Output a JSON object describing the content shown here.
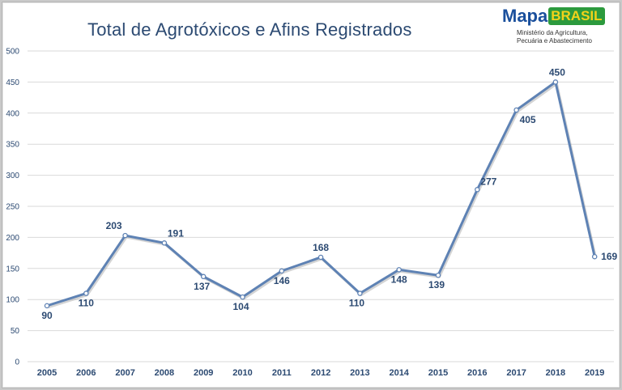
{
  "header": {
    "title": "Total de Agrotóxicos  e Afins  Registrados"
  },
  "logo": {
    "brand_a": "Mapa",
    "brand_b": "BRASIL",
    "line1": "Ministério da Agricultura,",
    "line2": "Pecuária e Abastecimento"
  },
  "colors": {
    "line": "#5e82b4",
    "grid": "#d9d9d9",
    "text": "#2c4a72"
  },
  "chart_data": {
    "type": "line",
    "title": "Total de Agrotóxicos  e Afins  Registrados",
    "xlabel": "",
    "ylabel": "",
    "categories": [
      "2005",
      "2006",
      "2007",
      "2008",
      "2009",
      "2010",
      "2011",
      "2012",
      "2013",
      "2014",
      "2015",
      "2016",
      "2017",
      "2018",
      "2019"
    ],
    "series": [
      {
        "values": [
          90,
          110,
          203,
          191,
          137,
          104,
          146,
          168,
          110,
          148,
          139,
          277,
          405,
          450,
          169
        ]
      }
    ],
    "ylim": [
      0,
      500
    ],
    "yticks": [
      0,
      50,
      100,
      150,
      200,
      250,
      300,
      350,
      400,
      450,
      500
    ],
    "grid": true,
    "legend": "none",
    "data_labels": [
      "90",
      "110",
      "203",
      "191",
      "137",
      "104",
      "146",
      "168",
      "110",
      "148",
      "139",
      "277",
      "405",
      "450",
      "169"
    ]
  }
}
